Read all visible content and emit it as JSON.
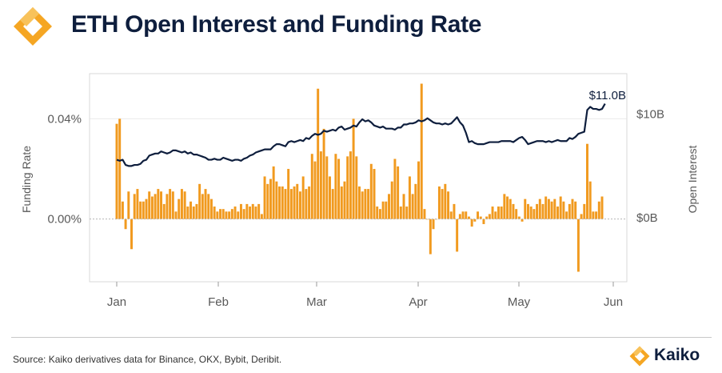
{
  "header": {
    "title": "ETH Open Interest and Funding Rate",
    "logo": "kaiko-logo-icon"
  },
  "colors": {
    "bar": "#f19a1f",
    "line": "#0e1e3d",
    "accent": "#f5a623",
    "title": "#0e1e3d",
    "axis_text": "#595959"
  },
  "chart_data": {
    "type": "bar+line",
    "title": "ETH Open Interest and Funding Rate",
    "x_axis": {
      "tick_labels": [
        "Jan",
        "Feb",
        "Mar",
        "Apr",
        "May",
        "Jun"
      ]
    },
    "y_left": {
      "label": "Funding Rate",
      "tick_labels": [
        "0.04%",
        "0.00%"
      ],
      "ticks": [
        0.04,
        0
      ],
      "range": [
        -0.025,
        0.058
      ]
    },
    "y_right": {
      "label": "Open Interest",
      "tick_labels": [
        "$10B",
        "$0B"
      ],
      "ticks": [
        10,
        0
      ],
      "range": [
        -6.16,
        13.9
      ]
    },
    "annotation": "$11.0B",
    "grid": true,
    "series": [
      {
        "name": "Funding Rate",
        "type": "bar",
        "axis": "left",
        "unit": "%",
        "values": [
          0.038,
          0.04,
          0.007,
          -0.004,
          0.011,
          -0.012,
          0.01,
          0.012,
          0.007,
          0.007,
          0.008,
          0.011,
          0.009,
          0.01,
          0.012,
          0.011,
          0.006,
          0.01,
          0.012,
          0.011,
          0.003,
          0.008,
          0.012,
          0.011,
          0.005,
          0.007,
          0.005,
          0.006,
          0.014,
          0.01,
          0.012,
          0.01,
          0.008,
          0.005,
          0.003,
          0.004,
          0.004,
          0.003,
          0.003,
          0.004,
          0.005,
          0.003,
          0.006,
          0.004,
          0.006,
          0.005,
          0.006,
          0.005,
          0.006,
          0.002,
          0.017,
          0.014,
          0.016,
          0.021,
          0.015,
          0.013,
          0.013,
          0.012,
          0.02,
          0.012,
          0.013,
          0.014,
          0.011,
          0.017,
          0.012,
          0.013,
          0.026,
          0.023,
          0.052,
          0.027,
          0.036,
          0.025,
          0.017,
          0.012,
          0.026,
          0.024,
          0.013,
          0.015,
          0.025,
          0.027,
          0.04,
          0.025,
          0.013,
          0.011,
          0.012,
          0.012,
          0.022,
          0.02,
          0.005,
          0.004,
          0.007,
          0.007,
          0.01,
          0.015,
          0.024,
          0.021,
          0.005,
          0.01,
          0.005,
          0.017,
          0.01,
          0.014,
          0.023,
          0.054,
          0.004,
          0.0,
          -0.014,
          -0.004,
          0.0,
          0.013,
          0.012,
          0.014,
          0.011,
          0.003,
          0.006,
          -0.013,
          0.002,
          0.003,
          0.003,
          0.001,
          -0.003,
          -0.001,
          0.003,
          0.001,
          -0.002,
          0.001,
          0.002,
          0.005,
          0.003,
          0.005,
          0.005,
          0.01,
          0.009,
          0.008,
          0.006,
          0.004,
          0.001,
          -0.001,
          0.008,
          0.006,
          0.005,
          0.004,
          0.006,
          0.008,
          0.006,
          0.009,
          0.008,
          0.007,
          0.008,
          0.005,
          0.009,
          0.007,
          0.003,
          0.006,
          0.008,
          0.007,
          -0.021,
          0.002,
          0.006,
          0.03,
          0.015,
          0.003,
          0.003,
          0.007,
          0.009
        ]
      },
      {
        "name": "Open Interest",
        "type": "line",
        "axis": "right",
        "unit": "$B",
        "values": [
          5.6,
          5.5,
          5.6,
          5.1,
          5.0,
          5.0,
          5.1,
          5.1,
          5.2,
          5.5,
          5.6,
          6.0,
          6.1,
          6.2,
          6.2,
          6.4,
          6.3,
          6.2,
          6.3,
          6.5,
          6.5,
          6.4,
          6.3,
          6.4,
          6.2,
          6.3,
          6.1,
          6.1,
          6.0,
          5.9,
          5.8,
          5.6,
          5.6,
          5.7,
          5.6,
          5.6,
          5.8,
          5.7,
          5.6,
          5.5,
          5.6,
          5.6,
          5.5,
          5.7,
          5.8,
          6.0,
          6.1,
          6.3,
          6.4,
          6.5,
          6.6,
          6.6,
          6.6,
          6.9,
          7.1,
          7.1,
          7.0,
          6.9,
          7.3,
          7.4,
          7.3,
          7.4,
          7.5,
          7.4,
          7.7,
          7.6,
          7.9,
          8.1,
          8.0,
          8.1,
          8.4,
          8.3,
          8.4,
          8.5,
          8.4,
          8.7,
          8.8,
          8.5,
          8.6,
          8.7,
          8.9,
          8.8,
          9.2,
          9.5,
          9.3,
          9.4,
          9.2,
          8.9,
          8.8,
          8.7,
          8.8,
          8.6,
          8.6,
          8.6,
          8.5,
          8.7,
          8.7,
          9.0,
          9.0,
          9.1,
          9.1,
          9.2,
          9.4,
          9.3,
          9.4,
          9.6,
          9.4,
          9.2,
          9.1,
          9.1,
          9.0,
          9.1,
          9.0,
          9.1,
          9.4,
          9.7,
          9.2,
          8.9,
          8.2,
          7.3,
          7.4,
          7.2,
          7.1,
          7.1,
          7.1,
          7.2,
          7.3,
          7.3,
          7.3,
          7.3,
          7.4,
          7.4,
          7.4,
          7.4,
          7.3,
          7.5,
          7.7,
          7.8,
          7.5,
          7.1,
          7.2,
          7.3,
          7.4,
          7.4,
          7.4,
          7.3,
          7.4,
          7.3,
          7.4,
          7.5,
          7.4,
          7.4,
          7.4,
          7.7,
          7.6,
          7.8,
          8.1,
          8.2,
          8.3,
          10.4,
          10.7,
          10.5,
          10.5,
          10.4,
          10.5,
          11.0
        ]
      }
    ]
  },
  "footer": {
    "source": "Source: Kaiko derivatives data for Binance, OKX, Bybit, Deribit.",
    "brand_name": "Kaiko"
  }
}
